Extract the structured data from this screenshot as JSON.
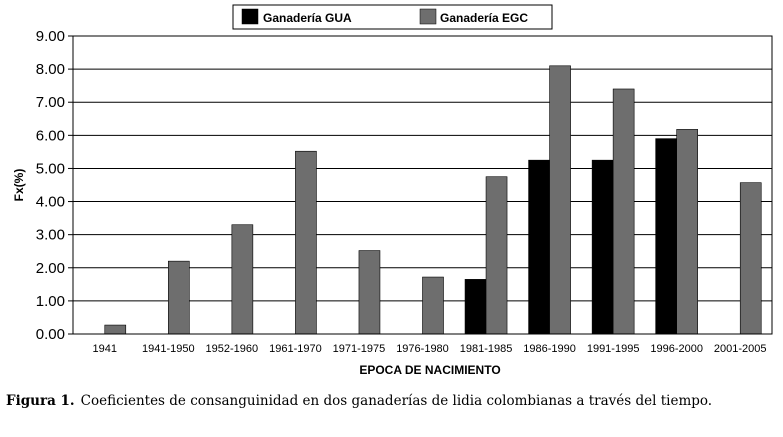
{
  "chart_data": {
    "type": "bar",
    "categories": [
      "1941",
      "1941-1950",
      "1952-1960",
      "1961-1970",
      "1971-1975",
      "1976-1980",
      "1981-1985",
      "1986-1990",
      "1991-1995",
      "1996-2000",
      "2001-2005"
    ],
    "series": [
      {
        "name": "Ganadería GUA",
        "color": "#000000",
        "values": [
          null,
          null,
          null,
          null,
          null,
          null,
          1.65,
          5.25,
          5.25,
          5.9,
          null
        ]
      },
      {
        "name": "Ganadería EGC",
        "color": "#6e6e6e",
        "values": [
          0.27,
          2.2,
          3.3,
          5.52,
          2.52,
          1.72,
          4.75,
          8.1,
          7.4,
          6.18,
          4.57
        ]
      }
    ],
    "yticks": [
      "9.00",
      "8.00",
      "7.00",
      "6.00",
      "5.00",
      "4.00",
      "3.00",
      "2.00",
      "1.00",
      "0.00"
    ],
    "ylim": [
      0,
      9
    ],
    "xlabel": "EPOCA DE NACIMIENTO",
    "ylabel": "Fx(%)",
    "grid": true,
    "legend_position": "top-center"
  },
  "caption": {
    "label": "Figura 1.",
    "text": "Coeficientes de consanguinidad en dos ganaderías de lidia colombianas a través del tiempo."
  }
}
